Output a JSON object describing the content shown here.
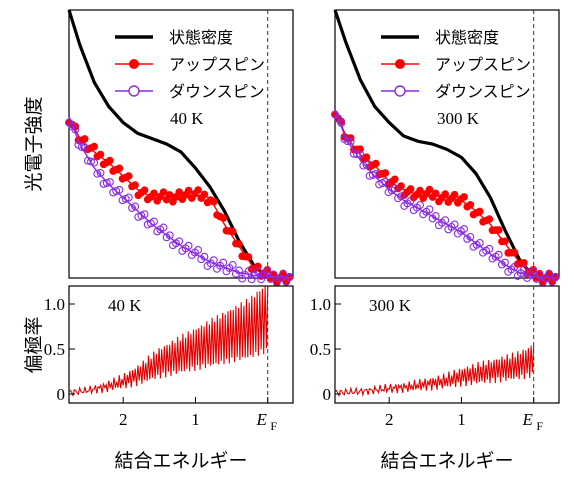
{
  "chart_data": [
    {
      "type": "line",
      "panel": "upper-left",
      "ylabel": "光電子強度",
      "annotation": "40 K",
      "legend": [
        "状態密度",
        "アップスピン",
        "ダウンスピン"
      ],
      "legend_position": "top-right",
      "xlim": [
        2.75,
        -0.35
      ],
      "ylim": [
        0,
        1
      ],
      "fermi_level_line": 0,
      "series": [
        {
          "name": "状態密度",
          "color": "#000000",
          "x": [
            2.75,
            2.6,
            2.4,
            2.2,
            2.0,
            1.8,
            1.6,
            1.4,
            1.2,
            1.0,
            0.8,
            0.6,
            0.4,
            0.2,
            0.05,
            0.0,
            -0.1,
            -0.2,
            -0.35
          ],
          "y": [
            1.0,
            0.87,
            0.73,
            0.64,
            0.58,
            0.54,
            0.52,
            0.5,
            0.47,
            0.41,
            0.34,
            0.25,
            0.14,
            0.05,
            0.01,
            0.005,
            0.002,
            0.002,
            0.002
          ]
        },
        {
          "name": "アップスピン",
          "color": "#ff0000",
          "x": [
            2.75,
            2.6,
            2.4,
            2.2,
            2.0,
            1.8,
            1.6,
            1.4,
            1.2,
            1.0,
            0.8,
            0.6,
            0.4,
            0.3,
            0.2,
            0.1,
            0.0,
            -0.1,
            -0.2,
            -0.35
          ],
          "y": [
            0.6,
            0.52,
            0.47,
            0.43,
            0.38,
            0.33,
            0.3,
            0.3,
            0.31,
            0.31,
            0.3,
            0.2,
            0.12,
            0.08,
            0.04,
            0.02,
            0.01,
            0.005,
            0.005,
            0.005
          ]
        },
        {
          "name": "ダウンスピン",
          "color": "#8a2be2",
          "x": [
            2.75,
            2.6,
            2.4,
            2.2,
            2.0,
            1.8,
            1.6,
            1.4,
            1.2,
            1.0,
            0.8,
            0.6,
            0.4,
            0.2,
            0.0,
            -0.2,
            -0.35
          ],
          "y": [
            0.6,
            0.5,
            0.41,
            0.35,
            0.3,
            0.25,
            0.2,
            0.16,
            0.12,
            0.09,
            0.06,
            0.04,
            0.02,
            0.01,
            0.005,
            0.002,
            0.002
          ]
        }
      ]
    },
    {
      "type": "line",
      "panel": "upper-right",
      "annotation": "300 K",
      "legend": [
        "状態密度",
        "アップスピン",
        "ダウンスピン"
      ],
      "legend_position": "top-right",
      "xlim": [
        2.75,
        -0.35
      ],
      "ylim": [
        0,
        1
      ],
      "fermi_level_line": 0,
      "series": [
        {
          "name": "状態密度",
          "color": "#000000",
          "x": [
            2.75,
            2.6,
            2.4,
            2.2,
            2.0,
            1.8,
            1.6,
            1.4,
            1.2,
            1.0,
            0.8,
            0.6,
            0.4,
            0.2,
            0.05,
            0.0,
            -0.2,
            -0.35
          ],
          "y": [
            1.0,
            0.88,
            0.74,
            0.64,
            0.58,
            0.53,
            0.51,
            0.5,
            0.48,
            0.45,
            0.39,
            0.3,
            0.18,
            0.07,
            0.02,
            0.01,
            0.005,
            0.005
          ]
        },
        {
          "name": "アップスピン",
          "color": "#ff0000",
          "x": [
            2.75,
            2.6,
            2.4,
            2.2,
            2.0,
            1.8,
            1.6,
            1.4,
            1.2,
            1.0,
            0.8,
            0.6,
            0.4,
            0.2,
            0.1,
            0.0,
            -0.2,
            -0.35
          ],
          "y": [
            0.63,
            0.53,
            0.46,
            0.42,
            0.36,
            0.33,
            0.31,
            0.31,
            0.3,
            0.29,
            0.25,
            0.2,
            0.13,
            0.06,
            0.03,
            0.01,
            0.005,
            0.005
          ]
        },
        {
          "name": "ダウンスピン",
          "color": "#8a2be2",
          "x": [
            2.75,
            2.6,
            2.4,
            2.2,
            2.0,
            1.8,
            1.6,
            1.4,
            1.2,
            1.0,
            0.8,
            0.6,
            0.4,
            0.2,
            0.0,
            -0.2,
            -0.35
          ],
          "y": [
            0.63,
            0.52,
            0.44,
            0.38,
            0.33,
            0.29,
            0.26,
            0.23,
            0.2,
            0.17,
            0.13,
            0.09,
            0.05,
            0.02,
            0.005,
            0.002,
            0.002
          ]
        }
      ]
    },
    {
      "type": "line",
      "panel": "lower-left",
      "ylabel": "偏極率",
      "xlabel": "結合エネルギー",
      "annotation": "40 K",
      "xlim": [
        2.75,
        -0.35
      ],
      "ylim": [
        -0.1,
        1.2
      ],
      "yticks": [
        "0",
        "0.5",
        "1.0"
      ],
      "xticks": [
        "2",
        "1",
        "E",
        "F"
      ],
      "fermi_level_line": 0,
      "series": [
        {
          "color": "#e00000",
          "x": [
            2.75,
            2.5,
            2.25,
            2.0,
            1.75,
            1.5,
            1.25,
            1.0,
            0.75,
            0.5,
            0.25,
            0.1,
            0.0
          ],
          "y": [
            0.02,
            0.05,
            0.1,
            0.18,
            0.3,
            0.45,
            0.55,
            0.65,
            0.75,
            0.85,
            0.95,
            1.05,
            1.1
          ]
        }
      ]
    },
    {
      "type": "line",
      "panel": "lower-right",
      "xlabel": "結合エネルギー",
      "annotation": "300 K",
      "xlim": [
        2.75,
        -0.35
      ],
      "ylim": [
        -0.1,
        1.2
      ],
      "yticks": [
        "0",
        "0.5",
        "1.0"
      ],
      "xticks": [
        "2",
        "1",
        "E",
        "F"
      ],
      "fermi_level_line": 0,
      "series": [
        {
          "color": "#e00000",
          "x": [
            2.75,
            2.5,
            2.25,
            2.0,
            1.75,
            1.5,
            1.25,
            1.0,
            0.75,
            0.5,
            0.25,
            0.1,
            0.0
          ],
          "y": [
            0.02,
            0.03,
            0.05,
            0.08,
            0.1,
            0.14,
            0.18,
            0.25,
            0.3,
            0.35,
            0.4,
            0.45,
            0.5
          ]
        }
      ]
    }
  ]
}
